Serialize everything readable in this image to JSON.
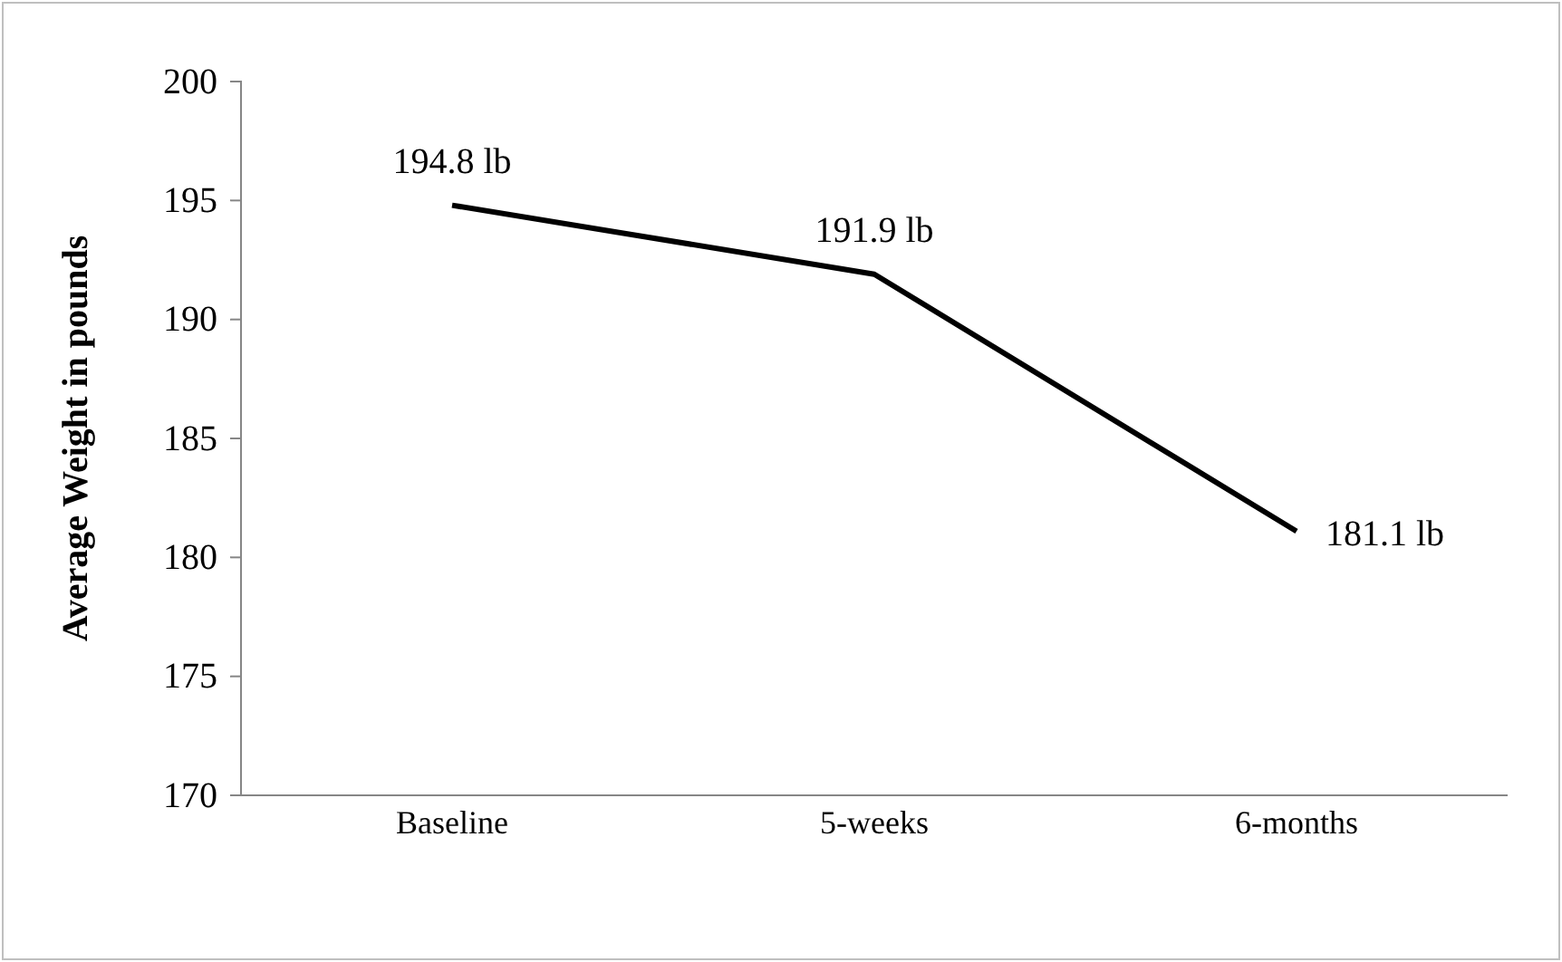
{
  "chart_data": {
    "type": "line",
    "ylabel": "Average Weight in pounds",
    "categories": [
      "Baseline",
      "5-weeks",
      "6-months"
    ],
    "series": [
      {
        "color": "#000000",
        "values": [
          194.8,
          191.9,
          181.1
        ],
        "value_labels": [
          "194.8 lb",
          "191.9 lb",
          "181.1 lb"
        ]
      }
    ],
    "ylim": [
      170,
      200
    ],
    "yticks": [
      170,
      175,
      180,
      185,
      190,
      195,
      200
    ],
    "grid": false,
    "marker": "none",
    "line_style": "solid"
  }
}
